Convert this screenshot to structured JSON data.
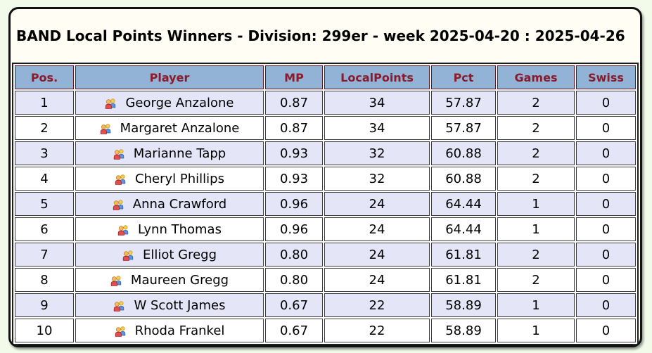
{
  "page_title": "BAND Local Points Winners - Division: 299er - week 2025-04-20 : 2025-04-26",
  "table": {
    "columns": [
      {
        "key": "pos",
        "label": "Pos."
      },
      {
        "key": "player",
        "label": "Player"
      },
      {
        "key": "mp",
        "label": "MP"
      },
      {
        "key": "localpoints",
        "label": "LocalPoints"
      },
      {
        "key": "pct",
        "label": "Pct"
      },
      {
        "key": "games",
        "label": "Games"
      },
      {
        "key": "swiss",
        "label": "Swiss"
      }
    ],
    "player_icon": "two-people-icon",
    "rows": [
      {
        "pos": "1",
        "player": "George Anzalone",
        "mp": "0.87",
        "localpoints": "34",
        "pct": "57.87",
        "games": "2",
        "swiss": "0"
      },
      {
        "pos": "2",
        "player": "Margaret Anzalone",
        "mp": "0.87",
        "localpoints": "34",
        "pct": "57.87",
        "games": "2",
        "swiss": "0"
      },
      {
        "pos": "3",
        "player": "Marianne Tapp",
        "mp": "0.93",
        "localpoints": "32",
        "pct": "60.88",
        "games": "2",
        "swiss": "0"
      },
      {
        "pos": "4",
        "player": "Cheryl Phillips",
        "mp": "0.93",
        "localpoints": "32",
        "pct": "60.88",
        "games": "2",
        "swiss": "0"
      },
      {
        "pos": "5",
        "player": "Anna Crawford",
        "mp": "0.96",
        "localpoints": "24",
        "pct": "64.44",
        "games": "1",
        "swiss": "0"
      },
      {
        "pos": "6",
        "player": "Lynn Thomas",
        "mp": "0.96",
        "localpoints": "24",
        "pct": "64.44",
        "games": "1",
        "swiss": "0"
      },
      {
        "pos": "7",
        "player": "Elliot Gregg",
        "mp": "0.80",
        "localpoints": "24",
        "pct": "61.81",
        "games": "2",
        "swiss": "0"
      },
      {
        "pos": "8",
        "player": "Maureen Gregg",
        "mp": "0.80",
        "localpoints": "24",
        "pct": "61.81",
        "games": "2",
        "swiss": "0"
      },
      {
        "pos": "9",
        "player": "W Scott James",
        "mp": "0.67",
        "localpoints": "22",
        "pct": "58.89",
        "games": "1",
        "swiss": "0"
      },
      {
        "pos": "10",
        "player": "Rhoda Frankel",
        "mp": "0.67",
        "localpoints": "22",
        "pct": "58.89",
        "games": "1",
        "swiss": "0"
      }
    ]
  },
  "colors": {
    "page_bg": "#f2fbea",
    "panel_bg": "#fffdf4",
    "panel_border": "#111111",
    "header_bg": "#92b2d6",
    "header_text": "#8b1b2b",
    "header_border": "#6f1322",
    "row_alt_bg": "#e4e6f8",
    "row_bg": "#ffffff",
    "cell_border": "#3d3d3d",
    "title_text": "#000000"
  }
}
